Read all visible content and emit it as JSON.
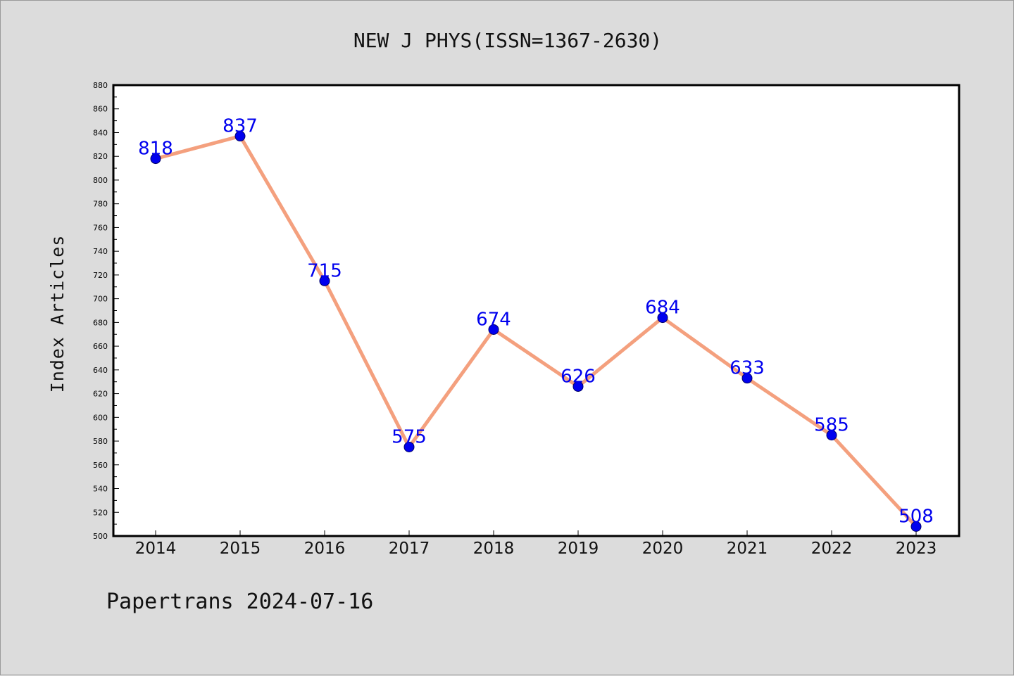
{
  "watermark": "Papertrans 2024-07-16",
  "chart_data": {
    "type": "line",
    "title": "NEW J PHYS(ISSN=1367-2630)",
    "xlabel": "",
    "ylabel": "Index Articles",
    "categories": [
      "2014",
      "2015",
      "2016",
      "2017",
      "2018",
      "2019",
      "2020",
      "2021",
      "2022",
      "2023"
    ],
    "series": [
      {
        "values": [
          818,
          837,
          715,
          575,
          674,
          626,
          684,
          633,
          585,
          508
        ]
      }
    ],
    "ylim": [
      500,
      880
    ],
    "yticks": [
      500,
      520,
      540,
      560,
      580,
      600,
      620,
      640,
      660,
      680,
      700,
      720,
      740,
      760,
      780,
      800,
      820,
      840,
      860,
      880
    ],
    "grid": false,
    "legend": "none",
    "colors": {
      "line": "#f4a07e",
      "marker": "#0000ee",
      "marker_edge": "#000066",
      "data_label": "#0000ee",
      "background": "#dcdcdc",
      "plot_bg": "#ffffff"
    }
  }
}
